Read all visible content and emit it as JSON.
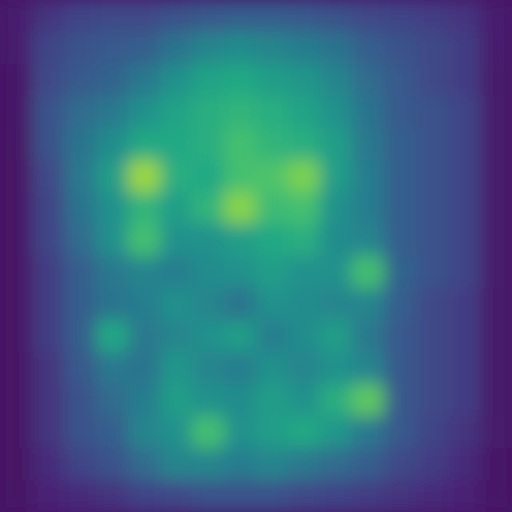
{
  "chart_data": {
    "type": "heatmap",
    "tick_labels": false,
    "zlim": [
      0,
      1
    ],
    "cells": [
      [
        0.08,
        0.15,
        0.2,
        0.22,
        0.22,
        0.25,
        0.28,
        0.3,
        0.3,
        0.28,
        0.25,
        0.22,
        0.2,
        0.18,
        0.15,
        0.08
      ],
      [
        0.08,
        0.2,
        0.25,
        0.28,
        0.3,
        0.38,
        0.45,
        0.48,
        0.45,
        0.42,
        0.38,
        0.3,
        0.25,
        0.22,
        0.18,
        0.08
      ],
      [
        0.06,
        0.22,
        0.28,
        0.32,
        0.4,
        0.5,
        0.58,
        0.6,
        0.55,
        0.52,
        0.45,
        0.35,
        0.28,
        0.22,
        0.18,
        0.07
      ],
      [
        0.06,
        0.25,
        0.35,
        0.4,
        0.5,
        0.58,
        0.62,
        0.65,
        0.62,
        0.58,
        0.5,
        0.38,
        0.28,
        0.25,
        0.2,
        0.07
      ],
      [
        0.05,
        0.25,
        0.38,
        0.48,
        0.6,
        0.6,
        0.62,
        0.7,
        0.65,
        0.62,
        0.55,
        0.4,
        0.3,
        0.25,
        0.2,
        0.07
      ],
      [
        0.05,
        0.22,
        0.4,
        0.55,
        0.85,
        0.62,
        0.6,
        0.7,
        0.72,
        0.8,
        0.55,
        0.42,
        0.3,
        0.25,
        0.2,
        0.07
      ],
      [
        0.05,
        0.2,
        0.38,
        0.5,
        0.65,
        0.55,
        0.65,
        0.82,
        0.68,
        0.7,
        0.5,
        0.42,
        0.3,
        0.25,
        0.2,
        0.07
      ],
      [
        0.05,
        0.2,
        0.35,
        0.5,
        0.7,
        0.5,
        0.5,
        0.55,
        0.6,
        0.62,
        0.48,
        0.45,
        0.3,
        0.25,
        0.2,
        0.07
      ],
      [
        0.05,
        0.18,
        0.3,
        0.4,
        0.45,
        0.42,
        0.48,
        0.5,
        0.55,
        0.5,
        0.5,
        0.7,
        0.32,
        0.25,
        0.2,
        0.07
      ],
      [
        0.05,
        0.18,
        0.3,
        0.38,
        0.42,
        0.5,
        0.45,
        0.38,
        0.5,
        0.48,
        0.45,
        0.45,
        0.3,
        0.22,
        0.18,
        0.07
      ],
      [
        0.05,
        0.18,
        0.3,
        0.6,
        0.4,
        0.45,
        0.5,
        0.55,
        0.42,
        0.48,
        0.55,
        0.4,
        0.28,
        0.22,
        0.18,
        0.07
      ],
      [
        0.05,
        0.15,
        0.28,
        0.4,
        0.38,
        0.52,
        0.45,
        0.42,
        0.5,
        0.45,
        0.5,
        0.45,
        0.28,
        0.22,
        0.18,
        0.07
      ],
      [
        0.05,
        0.15,
        0.25,
        0.35,
        0.42,
        0.55,
        0.5,
        0.48,
        0.55,
        0.5,
        0.62,
        0.75,
        0.28,
        0.22,
        0.18,
        0.07
      ],
      [
        0.05,
        0.15,
        0.25,
        0.3,
        0.45,
        0.5,
        0.7,
        0.5,
        0.55,
        0.6,
        0.52,
        0.4,
        0.28,
        0.2,
        0.15,
        0.07
      ],
      [
        0.05,
        0.12,
        0.2,
        0.25,
        0.35,
        0.45,
        0.45,
        0.42,
        0.45,
        0.4,
        0.35,
        0.3,
        0.22,
        0.18,
        0.12,
        0.06
      ],
      [
        0.05,
        0.1,
        0.12,
        0.15,
        0.2,
        0.22,
        0.25,
        0.25,
        0.25,
        0.22,
        0.2,
        0.18,
        0.15,
        0.12,
        0.1,
        0.06
      ]
    ]
  }
}
